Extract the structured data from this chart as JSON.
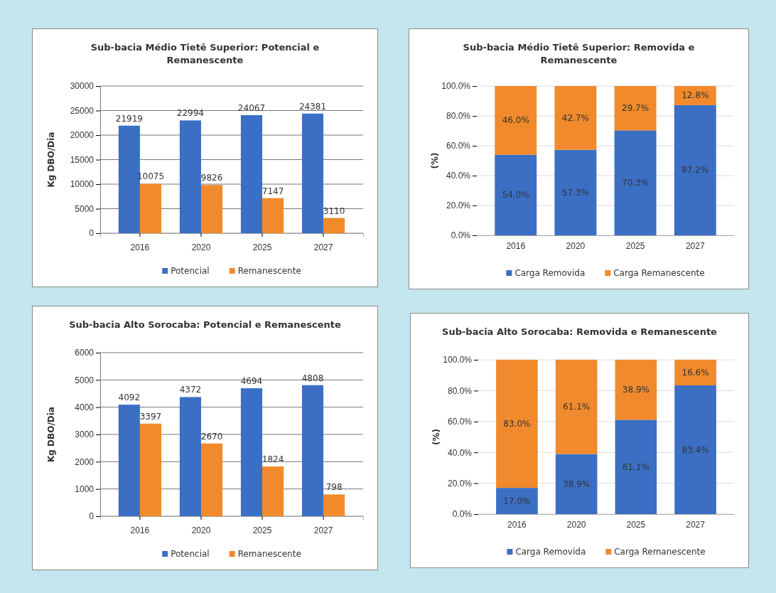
{
  "chart_data": [
    {
      "type": "bar",
      "title": "Sub-bacia Médio Tietê Superior: Potencial e Remanescente",
      "ylabel": "Kg DBO/Dia",
      "categories": [
        "2016",
        "2020",
        "2025",
        "2027"
      ],
      "series": [
        {
          "name": "Potencial",
          "color": "#3b6fc4",
          "values": [
            21919,
            22994,
            24067,
            24381
          ]
        },
        {
          "name": "Remanescente",
          "color": "#f08a2c",
          "values": [
            10075,
            9826,
            7147,
            3110
          ]
        }
      ],
      "ylim": [
        0,
        30000
      ],
      "yticks": [
        0,
        5000,
        10000,
        15000,
        20000,
        25000,
        30000
      ],
      "grid": "y",
      "legend": "bottom",
      "data_labels": true
    },
    {
      "type": "bar",
      "stacked": true,
      "title": "Sub-bacia Médio Tietê Superior: Removida e Remanescente",
      "ylabel": "(%)",
      "categories": [
        "2016",
        "2020",
        "2025",
        "2027"
      ],
      "series": [
        {
          "name": "Carga Removida",
          "color": "#3b6fc4",
          "values": [
            54.0,
            57.3,
            70.3,
            87.2
          ],
          "value_labels": [
            "54.0%",
            "57.3%",
            "70.3%",
            "87.2%"
          ]
        },
        {
          "name": "Carga Remanescente",
          "color": "#f08a2c",
          "values": [
            46.0,
            42.7,
            29.7,
            12.8
          ],
          "value_labels": [
            "46.0%",
            "42.7%",
            "29.7%",
            "12.8%"
          ]
        }
      ],
      "ylim": [
        0,
        100
      ],
      "yticks": [
        {
          "value": 0,
          "label": "0.0%"
        },
        {
          "value": 20,
          "label": "20.0%"
        },
        {
          "value": 40,
          "label": "40.0%"
        },
        {
          "value": 60,
          "label": "60.0%"
        },
        {
          "value": 80,
          "label": "80.0%"
        },
        {
          "value": 100,
          "label": "100.0%"
        }
      ],
      "grid": "y",
      "legend": "bottom"
    },
    {
      "type": "bar",
      "title": "Sub-bacia Alto Sorocaba: Potencial e Remanescente",
      "ylabel": "Kg DBO/Dia",
      "categories": [
        "2016",
        "2020",
        "2025",
        "2027"
      ],
      "series": [
        {
          "name": "Potencial",
          "color": "#3b6fc4",
          "values": [
            4092,
            4372,
            4694,
            4808
          ]
        },
        {
          "name": "Remanescente",
          "color": "#f08a2c",
          "values": [
            3397,
            2670,
            1824,
            798
          ]
        }
      ],
      "ylim": [
        0,
        6000
      ],
      "yticks": [
        0,
        1000,
        2000,
        3000,
        4000,
        5000,
        6000
      ],
      "grid": "y",
      "legend": "bottom",
      "data_labels": true
    },
    {
      "type": "bar",
      "stacked": true,
      "title": "Sub-bacia Alto Sorocaba: Removida e Remanescente",
      "ylabel": "(%)",
      "categories": [
        "2016",
        "2020",
        "2025",
        "2027"
      ],
      "series": [
        {
          "name": "Carga Removida",
          "color": "#3b6fc4",
          "values": [
            17.0,
            38.9,
            61.1,
            83.4
          ],
          "value_labels": [
            "17.0%",
            "38.9%",
            "61.1%",
            "83.4%"
          ]
        },
        {
          "name": "Carga Remanescente",
          "color": "#f08a2c",
          "values": [
            83.0,
            61.1,
            38.9,
            16.6
          ],
          "value_labels": [
            "83.0%",
            "61.1%",
            "38.9%",
            "16.6%"
          ]
        }
      ],
      "ylim": [
        0,
        100
      ],
      "yticks": [
        {
          "value": 0,
          "label": "0.0%"
        },
        {
          "value": 20,
          "label": "20.0%"
        },
        {
          "value": 40,
          "label": "40.0%"
        },
        {
          "value": 60,
          "label": "60.0%"
        },
        {
          "value": 80,
          "label": "80.0%"
        },
        {
          "value": 100,
          "label": "100.0%"
        }
      ],
      "grid": "y",
      "legend": "bottom"
    }
  ]
}
